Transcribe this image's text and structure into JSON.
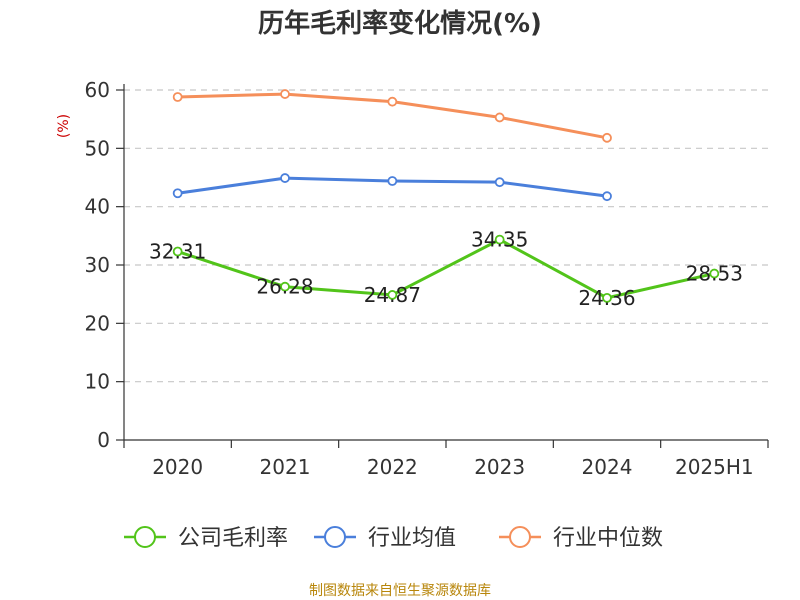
{
  "chart_data": {
    "type": "line",
    "title": "历年毛利率变化情况(%)",
    "ylabel": "(%)",
    "categories": [
      "2020",
      "2021",
      "2022",
      "2023",
      "2024",
      "2025H1"
    ],
    "ylim": [
      0,
      60
    ],
    "yticks": [
      "0",
      "10",
      "20",
      "30",
      "40",
      "50",
      "60"
    ],
    "grid": true,
    "legend_position": "bottom",
    "series": [
      {
        "name": "公司毛利率",
        "color": "#52c41a",
        "values": [
          32.31,
          26.28,
          24.87,
          34.35,
          24.36,
          28.53
        ],
        "labels": [
          "32.31",
          "26.28",
          "24.87",
          "34.35",
          "24.36",
          "28.53"
        ]
      },
      {
        "name": "行业均值",
        "color": "#4a7fdb",
        "values": [
          42.3,
          44.9,
          44.4,
          44.2,
          41.8,
          null
        ]
      },
      {
        "name": "行业中位数",
        "color": "#f58f5a",
        "values": [
          58.8,
          59.3,
          58.0,
          55.3,
          51.8,
          null
        ]
      }
    ]
  },
  "source": "制图数据来自恒生聚源数据库"
}
